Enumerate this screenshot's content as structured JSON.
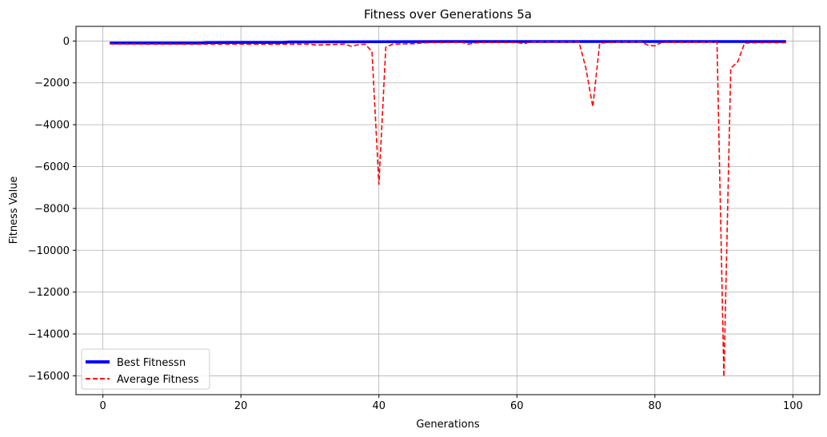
{
  "chart_data": {
    "type": "line",
    "title": "Fitness over Generations 5a",
    "xlabel": "Generations",
    "ylabel": "Fitness Value",
    "xlim": [
      -3.9,
      103.9
    ],
    "ylim": [
      -16900,
      700
    ],
    "xticks": [
      0,
      20,
      40,
      60,
      80,
      100
    ],
    "yticks": [
      0,
      -2000,
      -4000,
      -6000,
      -8000,
      -10000,
      -12000,
      -14000,
      -16000
    ],
    "grid": true,
    "legend_position": "lower-left",
    "series": [
      {
        "name": "Best Fitnessn",
        "color": "#0000ff",
        "style": "solid",
        "x": [
          1,
          14,
          15,
          20,
          26,
          27,
          50,
          99
        ],
        "y": [
          -95,
          -95,
          -80,
          -70,
          -70,
          -45,
          -25,
          -25
        ]
      },
      {
        "name": "Average Fitness",
        "color": "#ff0000",
        "style": "dashed",
        "x": [
          1,
          10,
          20,
          25,
          30,
          31,
          32,
          33,
          34,
          35,
          36,
          37,
          38,
          39,
          40,
          41,
          42,
          45,
          46,
          47,
          50,
          52,
          53,
          54,
          55,
          60,
          61,
          62,
          65,
          69,
          70,
          71,
          72,
          75,
          78,
          79,
          80,
          81,
          85,
          89,
          90,
          91,
          92,
          93,
          95,
          99
        ],
        "y": [
          -140,
          -150,
          -150,
          -155,
          -150,
          -200,
          -180,
          -170,
          -160,
          -150,
          -250,
          -180,
          -150,
          -500,
          -6850,
          -300,
          -150,
          -130,
          -100,
          -80,
          -70,
          -60,
          -150,
          -90,
          -70,
          -70,
          -130,
          -40,
          -40,
          -40,
          -1300,
          -3150,
          -100,
          -40,
          -40,
          -200,
          -230,
          -60,
          -60,
          -50,
          -16050,
          -1300,
          -1000,
          -100,
          -80,
          -80
        ]
      }
    ]
  }
}
